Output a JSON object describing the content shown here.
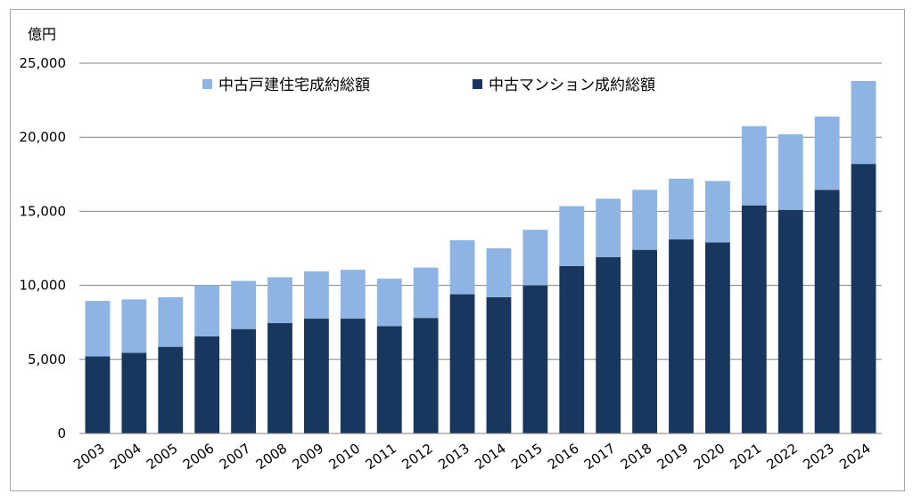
{
  "chart_data": {
    "type": "bar",
    "stacked": true,
    "unit_label": "億円",
    "categories": [
      "2003",
      "2004",
      "2005",
      "2006",
      "2007",
      "2008",
      "2009",
      "2010",
      "2011",
      "2012",
      "2013",
      "2014",
      "2015",
      "2016",
      "2017",
      "2018",
      "2019",
      "2020",
      "2021",
      "2022",
      "2023",
      "2024"
    ],
    "series": [
      {
        "name": "中古マンション成約総額",
        "color": "#17375e",
        "values": [
          5200,
          5450,
          5850,
          6550,
          7050,
          7450,
          7750,
          7750,
          7250,
          7800,
          9400,
          9200,
          10000,
          11300,
          11900,
          12400,
          13100,
          12900,
          15400,
          15100,
          16450,
          18200
        ]
      },
      {
        "name": "中古戸建住宅成約総額",
        "color": "#8db4e2",
        "values": [
          3750,
          3600,
          3350,
          3450,
          3250,
          3100,
          3200,
          3300,
          3200,
          3400,
          3650,
          3300,
          3750,
          4050,
          3950,
          4050,
          4100,
          4150,
          5350,
          5100,
          4950,
          5600
        ]
      }
    ],
    "yticks": [
      "0",
      "5,000",
      "10,000",
      "15,000",
      "20,000",
      "25,000"
    ],
    "ylim": [
      0,
      25000
    ],
    "grid": true,
    "legend_position": "top-left"
  }
}
